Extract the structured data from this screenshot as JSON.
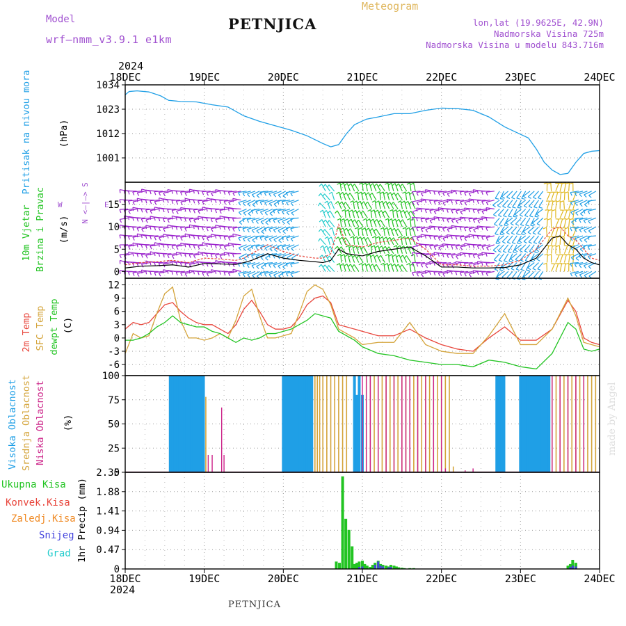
{
  "header": {
    "model_label": "Model",
    "model_value": "wrf–nmm_v3.9.1  e1km",
    "station": "PETNJICA",
    "meteogram_label": "Meteogram",
    "coords": "lon,lat (19.9625E, 42.9N)",
    "altitude": "Nadmorska Visina 725m",
    "model_altitude": "Nadmorska Visina u modelu 843.716m"
  },
  "footer": {
    "station": "PETNJICA",
    "watermark": "made by Angel"
  },
  "colors": {
    "pressure": "#1f9fe6",
    "temp2m": "#e8463c",
    "sfc_temp": "#d4a43a",
    "dewpoint": "#22c422",
    "high_cloud": "#1f9fe6",
    "mid_cloud": "#d4a43a",
    "low_cloud": "#cc2288",
    "total_precip": "#22c422",
    "conv_precip": "#e8463c",
    "frozen_precip": "#f08c28",
    "snow": "#4444dd",
    "graupel": "#22cccc",
    "wind_title": "#22c422",
    "wind_compass": "#a050d0",
    "wind_gust": "#e8463c",
    "wind_speed": "#000000",
    "header_purple": "#a050d0",
    "header_gold": "#e0b860"
  },
  "chart_data": [
    {
      "type": "line",
      "id": "pressure",
      "ylabel": "Pritisak na nivou mora",
      "units": "(hPa)",
      "ylim": [
        990,
        1034
      ],
      "yticks": [
        1001,
        1012,
        1023,
        1034
      ],
      "grid": true,
      "x_top_year": "2024",
      "x_ticks": [
        "18DEC",
        "19DEC",
        "20DEC",
        "21DEC",
        "22DEC",
        "23DEC",
        "24DEC"
      ],
      "x_days": [
        0,
        6
      ],
      "series": [
        {
          "x": [
            0,
            0.05,
            0.15,
            0.3,
            0.45,
            0.55,
            0.7,
            0.9,
            1.1,
            1.3,
            1.5,
            1.7,
            1.9,
            2.1,
            2.3,
            2.5,
            2.6,
            2.7,
            2.8,
            2.9,
            3.05,
            3.2,
            3.4,
            3.6,
            3.8,
            4.0,
            4.2,
            4.4,
            4.6,
            4.8,
            4.95,
            5.1,
            5.2,
            5.3,
            5.4,
            5.5,
            5.6,
            5.7,
            5.8,
            5.9,
            6.0
          ],
          "y": [
            1029.5,
            1031,
            1031.3,
            1030.8,
            1029,
            1027,
            1026.5,
            1026.3,
            1025,
            1024,
            1020,
            1017.5,
            1015.5,
            1013.5,
            1011,
            1007.5,
            1006,
            1007,
            1012,
            1016,
            1018.5,
            1019.5,
            1021,
            1021,
            1022.5,
            1023.5,
            1023.3,
            1022.5,
            1019.5,
            1015,
            1012.5,
            1010,
            1005,
            999,
            995.5,
            993.5,
            994,
            999,
            1003,
            1004,
            1004.3
          ]
        }
      ]
    },
    {
      "type": "wind",
      "id": "wind",
      "ylabel_line1": "10m Vjetar",
      "ylabel_line2": "Brzina i Pravac",
      "units": "(m/s)",
      "compass_vertical": "N <–|–> S",
      "compass_w": "W",
      "compass_e": "E",
      "ylim": [
        -1.5,
        20
      ],
      "yticks": [
        0,
        5,
        10,
        15
      ],
      "grid": true,
      "series": [
        {
          "name": "speed",
          "x": [
            0,
            0.2,
            0.4,
            0.6,
            0.8,
            1.0,
            1.2,
            1.4,
            1.5,
            1.6,
            1.8,
            2.0,
            2.2,
            2.4,
            2.5,
            2.6,
            2.7,
            2.8,
            3.0,
            3.2,
            3.4,
            3.6,
            3.8,
            4.0,
            4.2,
            4.4,
            4.6,
            4.8,
            5.0,
            5.2,
            5.4,
            5.5,
            5.6,
            5.7,
            5.8,
            5.9,
            6.0
          ],
          "y": [
            0.8,
            1.2,
            1.3,
            1.5,
            1.0,
            1.8,
            1.7,
            1.6,
            2.0,
            2.5,
            4.0,
            3.0,
            2.5,
            2.2,
            2.0,
            2.5,
            5.0,
            4.0,
            3.5,
            4.5,
            5.0,
            5.5,
            3.5,
            1.0,
            1.0,
            0.8,
            0.8,
            0.9,
            1.5,
            3.0,
            7.5,
            8.0,
            6.0,
            5.0,
            3.0,
            2.0,
            1.5
          ]
        },
        {
          "name": "gust",
          "x": [
            0,
            0.2,
            0.4,
            0.6,
            0.8,
            1.0,
            1.2,
            1.4,
            1.5,
            1.6,
            1.8,
            2.0,
            2.2,
            2.4,
            2.5,
            2.6,
            2.7,
            2.8,
            3.0,
            3.2,
            3.4,
            3.6,
            3.8,
            4.0,
            4.2,
            4.4,
            4.6,
            4.8,
            5.0,
            5.2,
            5.4,
            5.5,
            5.6,
            5.7,
            5.8,
            5.9,
            6.0
          ],
          "y": [
            1.5,
            2.0,
            2.2,
            2.5,
            2.0,
            3.0,
            2.8,
            2.5,
            3.0,
            4.0,
            6.0,
            4.5,
            3.5,
            3.0,
            3.0,
            4.0,
            10.5,
            6.0,
            5.5,
            6.5,
            7.0,
            7.5,
            5.0,
            1.5,
            1.5,
            1.2,
            1.2,
            1.5,
            2.5,
            5.0,
            9.5,
            10.0,
            8.0,
            7.0,
            5.0,
            3.0,
            2.5
          ]
        }
      ]
    },
    {
      "type": "line",
      "id": "temperature",
      "ylabel_2m": "2m Temp",
      "ylabel_sfc": "SFC Temp",
      "ylabel_dew": "dewpt Temp",
      "units": "(C)",
      "ylim": [
        -8.5,
        13.5
      ],
      "yticks": [
        -6,
        -3,
        0,
        3,
        6,
        9,
        12
      ],
      "grid": true,
      "series": [
        {
          "name": "2m Temp",
          "x": [
            0,
            0.1,
            0.2,
            0.3,
            0.4,
            0.5,
            0.6,
            0.7,
            0.8,
            0.9,
            1.0,
            1.1,
            1.2,
            1.3,
            1.4,
            1.5,
            1.6,
            1.7,
            1.8,
            1.9,
            2.0,
            2.1,
            2.2,
            2.3,
            2.4,
            2.5,
            2.6,
            2.7,
            2.8,
            2.9,
            3.0,
            3.2,
            3.4,
            3.6,
            3.8,
            4.0,
            4.2,
            4.4,
            4.6,
            4.8,
            5.0,
            5.2,
            5.4,
            5.6,
            5.7,
            5.8,
            5.9,
            6.0
          ],
          "y": [
            2.0,
            3.5,
            3.0,
            3.5,
            5.5,
            7.5,
            8.0,
            6.0,
            4.5,
            3.5,
            3.0,
            3.0,
            2.0,
            1.0,
            3.0,
            6.5,
            8.5,
            6.0,
            3.0,
            2.0,
            2.0,
            2.5,
            4.5,
            7.5,
            9.0,
            9.5,
            8.0,
            3.0,
            2.5,
            2.0,
            1.5,
            0.5,
            0.5,
            2.0,
            0.0,
            -1.5,
            -2.5,
            -3.0,
            0.0,
            2.5,
            -0.5,
            -0.5,
            2.0,
            8.5,
            6.0,
            0.0,
            -1.0,
            -1.5
          ]
        },
        {
          "name": "SFC Temp",
          "x": [
            0,
            0.1,
            0.2,
            0.3,
            0.4,
            0.5,
            0.6,
            0.7,
            0.8,
            0.9,
            1.0,
            1.1,
            1.2,
            1.3,
            1.4,
            1.5,
            1.6,
            1.7,
            1.8,
            1.9,
            2.0,
            2.1,
            2.2,
            2.3,
            2.4,
            2.5,
            2.6,
            2.7,
            2.8,
            2.9,
            3.0,
            3.2,
            3.4,
            3.6,
            3.8,
            4.0,
            4.2,
            4.4,
            4.6,
            4.8,
            5.0,
            5.2,
            5.4,
            5.6,
            5.7,
            5.8,
            5.9,
            6.0
          ],
          "y": [
            -3.5,
            1.0,
            0.0,
            0.5,
            5.5,
            10.0,
            11.5,
            4.0,
            0.0,
            0.0,
            -0.5,
            0.0,
            1.0,
            0.0,
            4.0,
            9.5,
            11.0,
            5.0,
            0.0,
            0.0,
            0.5,
            1.0,
            5.5,
            10.5,
            12.0,
            11.0,
            7.5,
            2.0,
            1.0,
            0.0,
            -1.5,
            -1.0,
            -1.0,
            3.5,
            -1.5,
            -3.0,
            -3.5,
            -3.5,
            0.5,
            5.5,
            -1.5,
            -1.5,
            2.0,
            9.0,
            5.0,
            -1.0,
            -1.5,
            -2.0
          ]
        },
        {
          "name": "dewpt Temp",
          "x": [
            0,
            0.1,
            0.2,
            0.3,
            0.4,
            0.5,
            0.6,
            0.7,
            0.8,
            0.9,
            1.0,
            1.1,
            1.2,
            1.3,
            1.4,
            1.5,
            1.6,
            1.7,
            1.8,
            1.9,
            2.0,
            2.1,
            2.2,
            2.3,
            2.4,
            2.5,
            2.6,
            2.7,
            2.8,
            2.9,
            3.0,
            3.2,
            3.4,
            3.6,
            3.8,
            4.0,
            4.2,
            4.4,
            4.6,
            4.8,
            5.0,
            5.2,
            5.4,
            5.6,
            5.7,
            5.8,
            5.9,
            6.0
          ],
          "y": [
            -0.5,
            -0.5,
            0.0,
            1.0,
            2.5,
            3.5,
            5.0,
            3.5,
            3.0,
            2.5,
            2.5,
            1.5,
            1.0,
            0.0,
            -1.0,
            0.0,
            -0.5,
            0.0,
            1.0,
            1.0,
            1.5,
            2.0,
            3.0,
            4.0,
            5.5,
            5.0,
            4.5,
            1.5,
            0.5,
            -0.5,
            -2.0,
            -3.5,
            -4.0,
            -5.0,
            -5.5,
            -6.0,
            -6.0,
            -6.5,
            -5.0,
            -5.5,
            -6.5,
            -7.0,
            -3.5,
            3.5,
            2.0,
            -2.5,
            -3.0,
            -2.5
          ]
        }
      ]
    },
    {
      "type": "bar",
      "id": "cloud",
      "ylabel_high": "Visoka Oblacnost",
      "ylabel_mid": "Srednja Oblacnost",
      "ylabel_low": "Niska Oblacnost",
      "units": "(%)",
      "ylim": [
        0,
        100
      ],
      "yticks": [
        0,
        25,
        50,
        75,
        100
      ],
      "grid": true,
      "series": [
        {
          "name": "high",
          "x": [
            0.57,
            0.6,
            0.63,
            0.66,
            0.69,
            0.72,
            0.75,
            0.78,
            0.81,
            0.84,
            0.87,
            0.9,
            0.93,
            0.96,
            0.99,
            2.0,
            2.03,
            2.06,
            2.09,
            2.12,
            2.15,
            2.18,
            2.21,
            2.24,
            2.27,
            2.3,
            2.33,
            2.36,
            2.9,
            2.93,
            2.96,
            3.0,
            4.7,
            4.73,
            4.76,
            4.79,
            5.0,
            5.03,
            5.06,
            5.09,
            5.12,
            5.15,
            5.18,
            5.21,
            5.24,
            5.27,
            5.3,
            5.33,
            5.36
          ],
          "y": [
            100,
            100,
            100,
            100,
            100,
            100,
            100,
            100,
            100,
            100,
            100,
            100,
            100,
            100,
            100,
            100,
            100,
            100,
            100,
            100,
            100,
            100,
            100,
            100,
            100,
            100,
            100,
            100,
            100,
            80,
            100,
            80,
            100,
            100,
            100,
            100,
            100,
            100,
            100,
            100,
            100,
            100,
            100,
            100,
            100,
            100,
            100,
            100,
            100
          ]
        },
        {
          "name": "mid",
          "x": [
            1.02,
            2.4,
            2.43,
            2.46,
            2.5,
            2.55,
            2.6,
            2.65,
            2.7,
            2.75,
            2.8,
            3.05,
            3.1,
            3.15,
            3.2,
            3.25,
            3.3,
            3.35,
            3.4,
            3.45,
            3.5,
            3.55,
            3.6,
            3.65,
            3.7,
            3.75,
            3.8,
            3.85,
            3.9,
            3.95,
            4.0,
            4.05,
            4.1,
            4.15,
            5.4,
            5.45,
            5.5,
            5.55,
            5.6,
            5.65,
            5.7,
            5.75,
            5.8,
            5.85,
            5.9,
            5.95
          ],
          "y": [
            78,
            100,
            100,
            100,
            100,
            100,
            100,
            100,
            100,
            100,
            100,
            100,
            100,
            100,
            100,
            100,
            100,
            100,
            100,
            100,
            100,
            100,
            100,
            100,
            100,
            100,
            100,
            100,
            100,
            100,
            100,
            100,
            100,
            6,
            100,
            100,
            100,
            100,
            100,
            100,
            100,
            100,
            100,
            100,
            100,
            100
          ]
        },
        {
          "name": "low",
          "x": [
            1.05,
            1.1,
            1.22,
            1.25,
            3.0,
            3.05,
            3.1,
            3.2,
            3.3,
            3.4,
            3.5,
            3.55,
            3.6,
            3.7,
            3.8,
            3.9,
            4.0,
            4.05,
            4.3,
            4.4,
            5.4,
            5.5,
            5.6,
            5.7,
            5.8
          ],
          "y": [
            18,
            18,
            67,
            18,
            100,
            100,
            100,
            100,
            100,
            100,
            100,
            100,
            100,
            100,
            100,
            100,
            100,
            4,
            2,
            4,
            100,
            100,
            100,
            100,
            100
          ]
        }
      ]
    },
    {
      "type": "bar",
      "id": "precip",
      "ylabel": "1hr Precip",
      "units": "(mm)",
      "legend_total": "Ukupna  Kisa",
      "legend_conv": "Konvek.Kisa",
      "legend_frozen": "Zaledj.Kisa",
      "legend_snow": "Snijeg",
      "legend_graupel": "Grad",
      "ylim": [
        0,
        2.35
      ],
      "yticks": [
        0,
        0.47,
        0.94,
        1.41,
        1.88,
        2.35
      ],
      "grid": true,
      "x_bottom_year": "2024",
      "series": [
        {
          "name": "total",
          "x": [
            2.67,
            2.71,
            2.75,
            2.79,
            2.83,
            2.87,
            2.9,
            2.93,
            2.96,
            3.0,
            3.03,
            3.06,
            3.1,
            3.13,
            3.16,
            3.2,
            3.23,
            3.26,
            3.3,
            3.33,
            3.36,
            3.4,
            3.43,
            3.46,
            3.5,
            3.53,
            3.6,
            3.65,
            5.6,
            5.63,
            5.66,
            5.7
          ],
          "y": [
            0.18,
            0.15,
            2.25,
            1.22,
            0.95,
            0.55,
            0.12,
            0.15,
            0.18,
            0.2,
            0.12,
            0.08,
            0.05,
            0.1,
            0.15,
            0.2,
            0.12,
            0.1,
            0.08,
            0.06,
            0.1,
            0.08,
            0.06,
            0.04,
            0.03,
            0.02,
            0.02,
            0.02,
            0.08,
            0.12,
            0.22,
            0.15
          ]
        },
        {
          "name": "snow",
          "x": [
            2.96,
            3.0,
            3.16,
            3.2,
            3.23,
            3.26,
            3.33,
            3.36,
            5.63,
            5.66,
            5.7
          ],
          "y": [
            0.05,
            0.06,
            0.1,
            0.18,
            0.08,
            0.06,
            0.04,
            0.05,
            0.05,
            0.08,
            0.06
          ]
        }
      ]
    }
  ]
}
